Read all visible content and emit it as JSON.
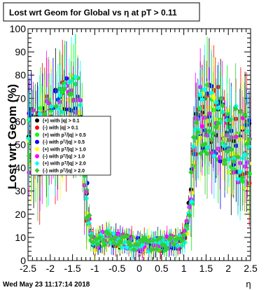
{
  "chart_data": {
    "type": "scatter",
    "title": "Lost wrt Geom for Global vs  η at pT > 0.11",
    "xlabel": "η",
    "ylabel": "Lost wrt Geom (%)",
    "xlim": [
      -2.5,
      2.5
    ],
    "ylim": [
      0,
      100
    ],
    "x_ticks": [
      "-2.5",
      "-2",
      "-1.5",
      "-1",
      "-0.5",
      "0",
      "0.5",
      "1",
      "1.5",
      "2",
      "2.5"
    ],
    "y_ticks": [
      "0",
      "10",
      "20",
      "30",
      "40",
      "50",
      "60",
      "70",
      "80",
      "90",
      "100"
    ],
    "grid": false,
    "legend_position": "left-middle",
    "footer": "Wed May 23 11:17:14 2018",
    "series": [
      {
        "name": "(+) with |q| > 0.1",
        "color": "#000000",
        "marker": "circle"
      },
      {
        "name": "(-) with |q| > 0.1",
        "color": "#ff0000",
        "marker": "circle"
      },
      {
        "name": "(+) with pᵀ/|q| > 0.5",
        "color": "#00ff00",
        "marker": "circle"
      },
      {
        "name": "(-) with pᵀ/|q| > 0.5",
        "color": "#0000ff",
        "marker": "circle"
      },
      {
        "name": "(+) with pᵀ/|q| > 1.0",
        "color": "#ffff00",
        "marker": "circle"
      },
      {
        "name": "(-) with pᵀ/|q| > 1.0",
        "color": "#ff00ff",
        "marker": "circle"
      },
      {
        "name": "(+) with pᵀ/|q| > 2.0",
        "color": "#00ffff",
        "marker": "diamond"
      },
      {
        "name": "(-) with pᵀ/|q| > 2.0",
        "color": "#33cc33",
        "marker": "diamond"
      }
    ],
    "profile": {
      "x": [
        -2.5,
        -2.3,
        -2.1,
        -1.9,
        -1.7,
        -1.5,
        -1.4,
        -1.3,
        -1.25,
        -1.2,
        -1.15,
        -1.1,
        -1.05,
        -1.0,
        -0.9,
        -0.7,
        -0.5,
        -0.3,
        0.0,
        0.3,
        0.5,
        0.7,
        0.9,
        1.0,
        1.05,
        1.1,
        1.15,
        1.2,
        1.25,
        1.3,
        1.4,
        1.5,
        1.7,
        1.9,
        2.1,
        2.3,
        2.5
      ],
      "y": [
        48,
        52,
        55,
        58,
        62,
        66,
        68,
        60,
        45,
        30,
        20,
        12,
        8,
        6,
        9,
        10,
        9,
        8,
        7,
        7,
        7,
        8,
        8,
        9,
        12,
        18,
        28,
        40,
        52,
        58,
        62,
        62,
        60,
        57,
        52,
        48,
        45
      ]
    }
  }
}
